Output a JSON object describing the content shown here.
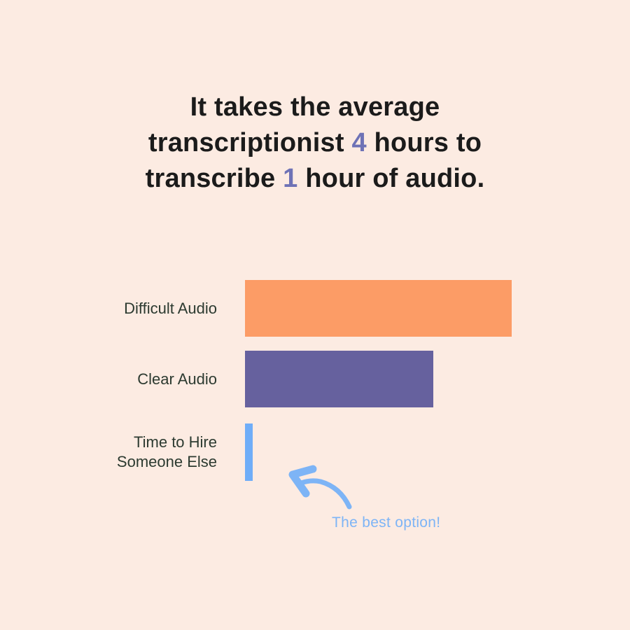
{
  "page": {
    "background_color": "#fcebe2"
  },
  "title": {
    "line1": "It takes the average",
    "line2_pre": "transcriptionist ",
    "line2_num": "4",
    "line2_post": " hours to",
    "line3_pre": "transcribe ",
    "line3_num": "1",
    "line3_post": " hour of audio.",
    "text_color": "#1b1b1b",
    "accent_color": "#6e72b6"
  },
  "chart_data": {
    "type": "bar",
    "orientation": "horizontal",
    "title": "",
    "xlabel": "",
    "ylabel": "",
    "categories": [
      "Difficult Audio",
      "Clear Audio",
      "Time to Hire Someone Else"
    ],
    "label_lines": [
      [
        "Difficult Audio"
      ],
      [
        "Clear Audio"
      ],
      [
        "Time to Hire",
        "Someone Else"
      ]
    ],
    "values": [
      381,
      269,
      11
    ],
    "units": "relative bar length in px; no numeric axis or value labels shown",
    "colors": [
      "#fc9c66",
      "#66619e",
      "#6fadf8"
    ],
    "axis_visible": false,
    "grid": false,
    "legend": "none",
    "label_color": "#2c3a30"
  },
  "annotation": {
    "text": "The best option!",
    "color": "#7db4f6",
    "arrow": "hand-drawn curved arrow pointing up-left at the 'Time to Hire Someone Else' bar"
  }
}
